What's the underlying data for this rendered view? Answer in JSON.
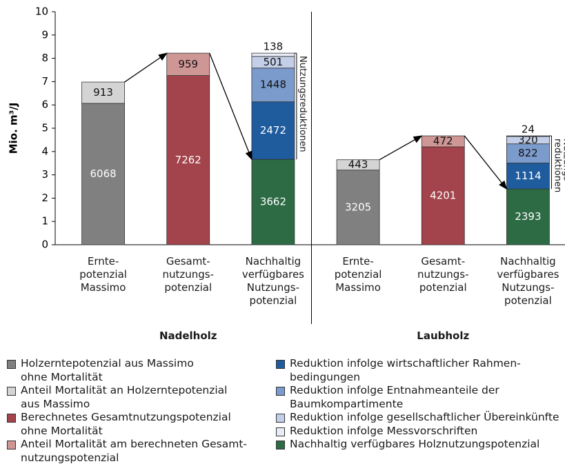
{
  "chart_data": {
    "type": "stacked_bar",
    "y_label": "Mio. m³/J",
    "categories": [
      "Ernte-\npotenzial\nMassimo",
      "Gesamt-\nnutzungs-\npotenzial",
      "Nachhaltig\nverfügbares\nNutzungs-\npotenzial",
      "Ernte-\npotenzial\nMassimo",
      "Gesamt-\nnutzungs-\npotenzial",
      "Nachhaltig\nverfügbares\nNutzungs-\npotenzial"
    ],
    "groups": [
      "Nadelholz",
      "Laubholz"
    ],
    "annotations": [
      "Nutzungsreduktionen",
      "Nutzungs-\nreduktionen"
    ],
    "ylim": [
      0,
      10
    ],
    "yticks": [
      0,
      1,
      2,
      3,
      4,
      5,
      6,
      7,
      8,
      9,
      10
    ],
    "stack_order": [
      0,
      1,
      2,
      3,
      8,
      4,
      5,
      6,
      7
    ],
    "series": [
      {
        "name": "Holzerntepotenzial aus Massimo\nohne Mortalität",
        "color": "#808080",
        "values": [
          6.068,
          null,
          null,
          3.205,
          null,
          null
        ],
        "value_labels": [
          "6068",
          null,
          null,
          "3205",
          null,
          null
        ]
      },
      {
        "name": "Anteil Mortalität an Holzerntepotenzial\naus Massimo",
        "color": "#d4d4d4",
        "values": [
          0.913,
          null,
          null,
          0.443,
          null,
          null
        ],
        "value_labels": [
          "913",
          null,
          null,
          "443",
          null,
          null
        ]
      },
      {
        "name": "Berechnetes Gesamtnutzungspotenzial\nohne Mortalität",
        "color": "#a3434b",
        "values": [
          null,
          7.262,
          null,
          null,
          4.201,
          null
        ],
        "value_labels": [
          null,
          "7262",
          null,
          null,
          "4201",
          null
        ]
      },
      {
        "name": "Anteil Mortalität am berechneten Gesamt-\nnutzungspotenzial",
        "color": "#cf9696",
        "values": [
          null,
          0.959,
          null,
          null,
          0.472,
          null
        ],
        "value_labels": [
          null,
          "959",
          null,
          null,
          "472",
          null
        ]
      },
      {
        "name": "Reduktion infolge wirtschaftlicher Rahmen-\nbedingungen",
        "color": "#1f5c9e",
        "values": [
          null,
          null,
          2.472,
          null,
          null,
          1.114
        ],
        "value_labels": [
          null,
          null,
          "2472",
          null,
          null,
          "1114"
        ]
      },
      {
        "name": "Reduktion infolge Entnahmeanteile der\nBaumkompartimente",
        "color": "#7b9bcc",
        "values": [
          null,
          null,
          1.448,
          null,
          null,
          0.822
        ],
        "value_labels": [
          null,
          null,
          "1448",
          null,
          null,
          "822"
        ]
      },
      {
        "name": "Reduktion infolge gesellschaftlicher Übereinkünfte",
        "color": "#c3cfe8",
        "values": [
          null,
          null,
          0.501,
          null,
          null,
          0.32
        ],
        "value_labels": [
          null,
          null,
          "501",
          null,
          null,
          "320"
        ]
      },
      {
        "name": "Reduktion infolge Messvorschriften",
        "color": "#e8ecf6",
        "values": [
          null,
          null,
          0.138,
          null,
          null,
          0.024
        ],
        "value_labels": [
          null,
          null,
          "138",
          null,
          null,
          "24"
        ]
      },
      {
        "name": "Nachhaltig verfügbares Holznutzungspotenzial",
        "color": "#2d6b45",
        "values": [
          null,
          null,
          3.662,
          null,
          null,
          2.393
        ],
        "value_labels": [
          null,
          null,
          "3662",
          null,
          null,
          "2393"
        ]
      }
    ]
  }
}
